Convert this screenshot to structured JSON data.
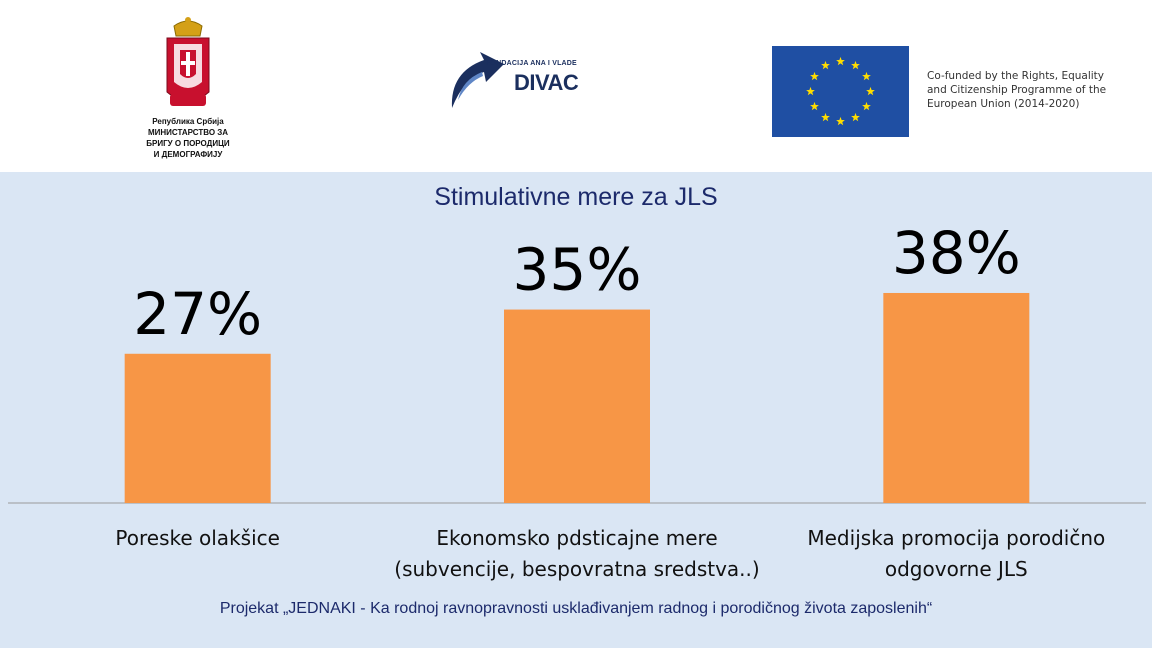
{
  "header": {
    "serbia_lines": [
      "Република Србија",
      "МИНИСТАРСТВО ЗА",
      "БРИГУ О ПОРОДИЦИ",
      "И ДЕМОГРАФИЈУ"
    ],
    "divac_small": "FONDACIJA ANA I VLADE",
    "divac_big": "DIVAC",
    "eu_lines": [
      "Co-funded by the Rights, Equality",
      "and Citizenship Programme of the",
      "European Union (2014-2020)"
    ]
  },
  "colors": {
    "panel": "#dae6f4",
    "bar": "#f79646",
    "title": "#1c2a6b",
    "eu_blue": "#1f4fa3",
    "eu_star": "#ffdd00"
  },
  "chart_data": {
    "type": "bar",
    "title": "Stimulativne mere za JLS",
    "categories": [
      [
        "Poreske olakšice"
      ],
      [
        "Ekonomsko pdsticajne mere",
        "(subvencije, bespovratna sredstva..)"
      ],
      [
        "Medijska promocija porodično",
        "odgovorne JLS"
      ]
    ],
    "values": [
      27,
      35,
      38
    ],
    "data_labels": [
      "27%",
      "35%",
      "38%"
    ],
    "unit": "%",
    "ylim": [
      0,
      45
    ],
    "grid": false,
    "legend": "none"
  },
  "footer": {
    "text": "Projekat „JEDNAKI - Ka rodnoj ravnopravnosti usklađivanjem radnog i porodičnog života zaposlenih“"
  }
}
